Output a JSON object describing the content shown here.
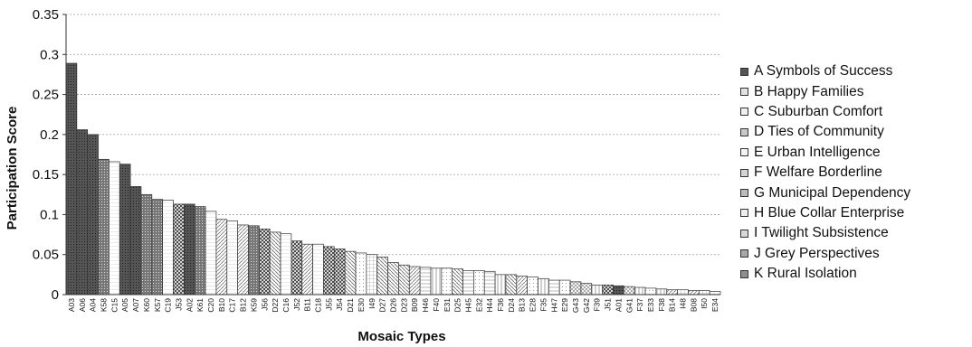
{
  "chart_data": {
    "type": "bar",
    "title": "",
    "xlabel": "Mosaic Types",
    "ylabel": "Participation Score",
    "ylim": [
      0,
      0.35
    ],
    "yticks": [
      "0",
      "0.05",
      "0.1",
      "0.15",
      "0.2",
      "0.25",
      "0.3",
      "0.35"
    ],
    "grid": "horizontal dotted",
    "legend_position": "right",
    "categories": [
      "A03",
      "A06",
      "A04",
      "K58",
      "C15",
      "A05",
      "A07",
      "K60",
      "K57",
      "C19",
      "J53",
      "A02",
      "K61",
      "C20",
      "B10",
      "C17",
      "B12",
      "K59",
      "J56",
      "D22",
      "C16",
      "J52",
      "B11",
      "C18",
      "J55",
      "J54",
      "D21",
      "E30",
      "I49",
      "D27",
      "D26",
      "D23",
      "B09",
      "H46",
      "F40",
      "E31",
      "D25",
      "H45",
      "E32",
      "H44",
      "F36",
      "D24",
      "B13",
      "E28",
      "F35",
      "H47",
      "E29",
      "G43",
      "G42",
      "F39",
      "J51",
      "A01",
      "G41",
      "F37",
      "E33",
      "F38",
      "B14",
      "I48",
      "B08",
      "I50",
      "E34"
    ],
    "values": [
      0.289,
      0.206,
      0.2,
      0.169,
      0.166,
      0.163,
      0.135,
      0.125,
      0.119,
      0.118,
      0.113,
      0.113,
      0.11,
      0.104,
      0.094,
      0.092,
      0.087,
      0.086,
      0.082,
      0.078,
      0.076,
      0.067,
      0.063,
      0.063,
      0.06,
      0.057,
      0.054,
      0.052,
      0.05,
      0.047,
      0.04,
      0.037,
      0.035,
      0.034,
      0.033,
      0.033,
      0.032,
      0.03,
      0.03,
      0.029,
      0.025,
      0.025,
      0.023,
      0.022,
      0.02,
      0.018,
      0.018,
      0.016,
      0.014,
      0.012,
      0.012,
      0.011,
      0.01,
      0.009,
      0.008,
      0.007,
      0.006,
      0.006,
      0.005,
      0.005,
      0.004
    ],
    "legend": [
      {
        "key": "A",
        "label": "A Symbols of Success",
        "fill": "#555555"
      },
      {
        "key": "B",
        "label": "B Happy Families",
        "fill": "#e2e2e2"
      },
      {
        "key": "C",
        "label": "C Suburban Comfort",
        "fill": "#f0f0f0"
      },
      {
        "key": "D",
        "label": "D Ties of Community",
        "fill": "#c8c8c8"
      },
      {
        "key": "E",
        "label": "E Urban Intelligence",
        "fill": "#f4f4f4"
      },
      {
        "key": "F",
        "label": "F Welfare Borderline",
        "fill": "#d4d4d4"
      },
      {
        "key": "G",
        "label": "G Municipal Dependency",
        "fill": "#bbbbbb"
      },
      {
        "key": "H",
        "label": "H Blue Collar Enterprise",
        "fill": "#eeeeee"
      },
      {
        "key": "I",
        "label": "I Twilight Subsistence",
        "fill": "#d8d8d8"
      },
      {
        "key": "J",
        "label": "J Grey Perspectives",
        "fill": "#a8a8a8"
      },
      {
        "key": "K",
        "label": "K Rural Isolation",
        "fill": "#8e8e8e"
      }
    ]
  }
}
